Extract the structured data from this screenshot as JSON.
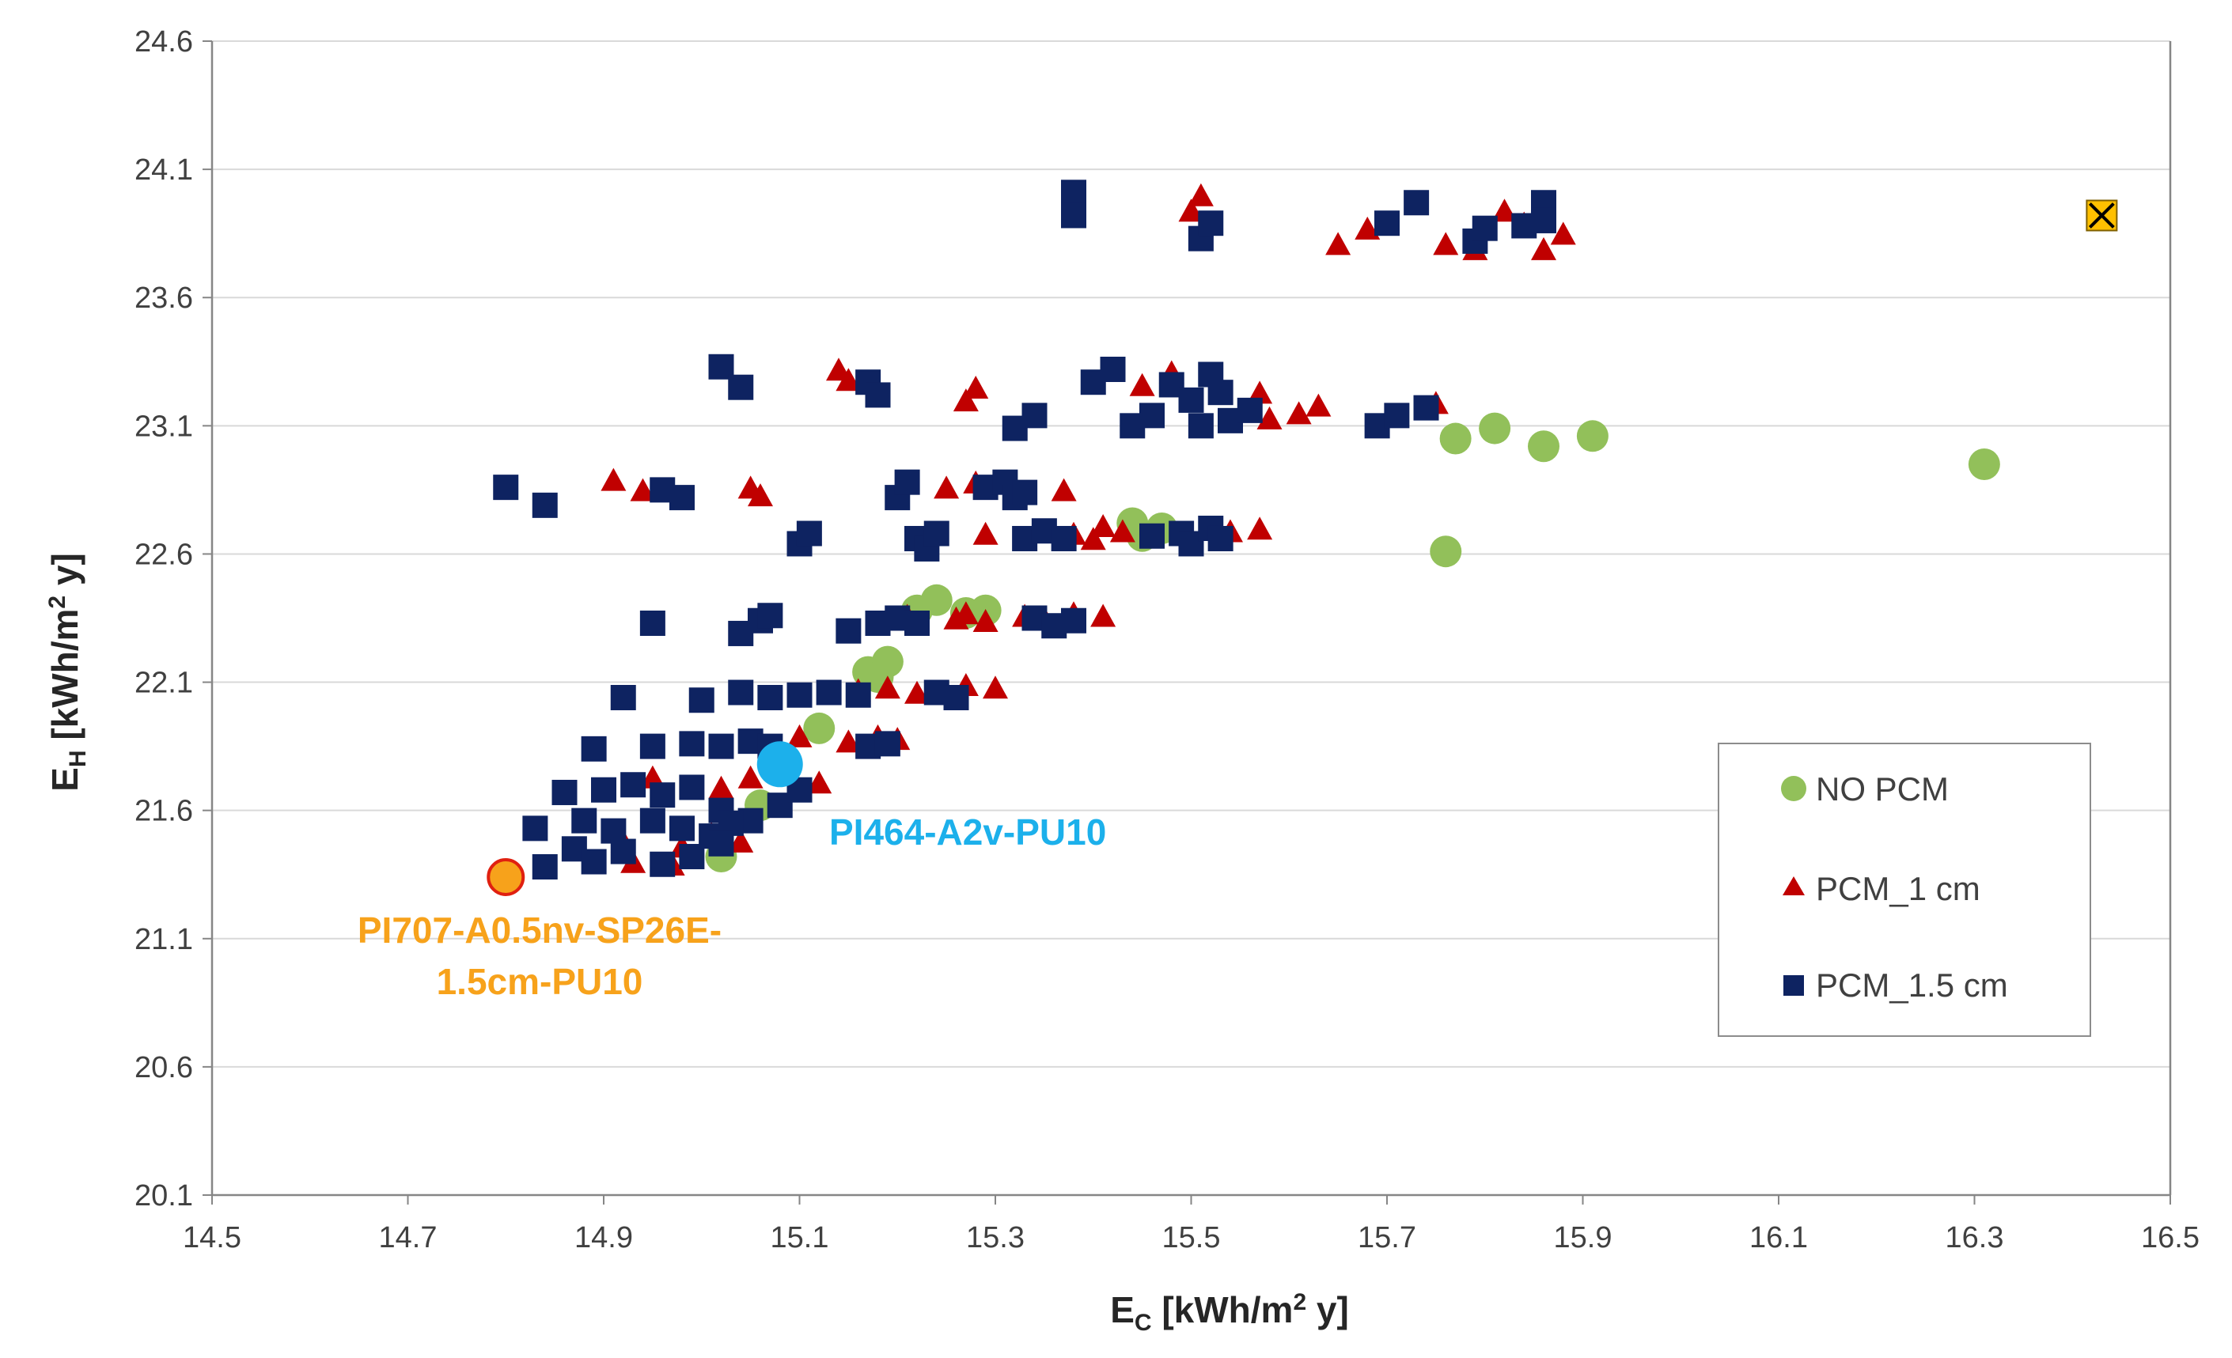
{
  "chart_data": {
    "type": "scatter",
    "title": "",
    "xlabel": {
      "main": "E",
      "sub": "C",
      "unit_pre": " [kWh/m",
      "sup": "2",
      "unit_post": " y]"
    },
    "ylabel": {
      "main": "E",
      "sub": "H",
      "unit_pre": " [kWh/m",
      "sup": "2",
      "unit_post": " y]"
    },
    "xlim": [
      14.5,
      16.5
    ],
    "ylim": [
      20.1,
      24.6
    ],
    "x_ticks": [
      "14.5",
      "14.7",
      "14.9",
      "15.1",
      "15.3",
      "15.5",
      "15.7",
      "15.9",
      "16.1",
      "16.3",
      "16.5"
    ],
    "y_ticks": [
      "20.1",
      "20.6",
      "21.1",
      "21.6",
      "22.1",
      "22.6",
      "23.1",
      "23.6",
      "24.1",
      "24.6"
    ],
    "grid": "horizontal",
    "legend_position": "right",
    "colors": {
      "no_pcm": "#92C05A",
      "pcm_1": "#C00000",
      "pcm_15": "#0E2361",
      "optimum": "#F7A21B",
      "optimum_edge": "#E02010",
      "reference": "#1CB0EB",
      "base_case": "#FFC000",
      "grid": "#D9D9D9",
      "axis": "#868686"
    },
    "series": [
      {
        "name": "NO PCM",
        "marker": "circle",
        "points": [
          [
            15.02,
            21.42
          ],
          [
            15.06,
            21.62
          ],
          [
            15.12,
            21.92
          ],
          [
            15.17,
            22.14
          ],
          [
            15.19,
            22.18
          ],
          [
            15.18,
            22.12
          ],
          [
            15.22,
            22.38
          ],
          [
            15.24,
            22.42
          ],
          [
            15.27,
            22.37
          ],
          [
            15.29,
            22.38
          ],
          [
            15.44,
            22.72
          ],
          [
            15.45,
            22.67
          ],
          [
            15.47,
            22.7
          ],
          [
            15.76,
            22.61
          ],
          [
            15.77,
            23.05
          ],
          [
            15.81,
            23.09
          ],
          [
            15.86,
            23.02
          ],
          [
            15.91,
            23.06
          ],
          [
            16.31,
            22.95
          ]
        ]
      },
      {
        "name": "PCM_1 cm",
        "marker": "triangle",
        "points": [
          [
            14.91,
            22.88
          ],
          [
            14.94,
            22.84
          ],
          [
            15.05,
            22.85
          ],
          [
            15.06,
            22.82
          ],
          [
            15.14,
            23.31
          ],
          [
            15.15,
            23.27
          ],
          [
            15.27,
            23.19
          ],
          [
            15.28,
            23.24
          ],
          [
            15.48,
            23.3
          ],
          [
            15.5,
            23.93
          ],
          [
            15.51,
            23.99
          ],
          [
            15.45,
            23.25
          ],
          [
            15.57,
            23.22
          ],
          [
            15.58,
            23.12
          ],
          [
            15.61,
            23.14
          ],
          [
            15.63,
            23.17
          ],
          [
            15.65,
            23.8
          ],
          [
            15.68,
            23.86
          ],
          [
            15.75,
            23.18
          ],
          [
            15.76,
            23.8
          ],
          [
            15.79,
            23.78
          ],
          [
            15.82,
            23.93
          ],
          [
            15.84,
            23.88
          ],
          [
            15.86,
            23.78
          ],
          [
            15.88,
            23.84
          ],
          [
            15.23,
            22.67
          ],
          [
            15.25,
            22.85
          ],
          [
            15.28,
            22.87
          ],
          [
            15.29,
            22.67
          ],
          [
            15.37,
            22.84
          ],
          [
            15.38,
            22.67
          ],
          [
            15.41,
            22.7
          ],
          [
            15.4,
            22.65
          ],
          [
            15.43,
            22.68
          ],
          [
            15.46,
            22.66
          ],
          [
            15.54,
            22.68
          ],
          [
            15.57,
            22.69
          ],
          [
            15.21,
            22.35
          ],
          [
            15.26,
            22.34
          ],
          [
            15.27,
            22.36
          ],
          [
            15.29,
            22.33
          ],
          [
            15.33,
            22.35
          ],
          [
            15.35,
            22.34
          ],
          [
            15.38,
            22.36
          ],
          [
            15.41,
            22.35
          ],
          [
            15.16,
            22.06
          ],
          [
            15.19,
            22.07
          ],
          [
            15.22,
            22.05
          ],
          [
            15.27,
            22.08
          ],
          [
            15.3,
            22.07
          ],
          [
            14.95,
            21.72
          ],
          [
            15.02,
            21.68
          ],
          [
            15.05,
            21.72
          ],
          [
            15.09,
            21.73
          ],
          [
            15.12,
            21.7
          ],
          [
            14.98,
            21.45
          ],
          [
            15.01,
            21.5
          ],
          [
            15.04,
            21.47
          ],
          [
            14.92,
            21.47
          ],
          [
            14.97,
            21.38
          ],
          [
            14.93,
            21.39
          ],
          [
            15.1,
            21.88
          ],
          [
            15.15,
            21.86
          ],
          [
            15.18,
            21.88
          ],
          [
            15.2,
            21.87
          ]
        ]
      },
      {
        "name": "PCM_1.5 cm",
        "marker": "square",
        "points": [
          [
            15.38,
            24.01
          ],
          [
            15.38,
            23.92
          ],
          [
            15.51,
            23.83
          ],
          [
            15.52,
            23.89
          ],
          [
            15.7,
            23.89
          ],
          [
            15.73,
            23.97
          ],
          [
            15.79,
            23.82
          ],
          [
            15.8,
            23.87
          ],
          [
            15.84,
            23.88
          ],
          [
            15.86,
            23.97
          ],
          [
            15.86,
            23.9
          ],
          [
            15.02,
            23.33
          ],
          [
            15.04,
            23.25
          ],
          [
            15.17,
            23.27
          ],
          [
            15.18,
            23.22
          ],
          [
            15.32,
            23.09
          ],
          [
            15.34,
            23.14
          ],
          [
            15.4,
            23.27
          ],
          [
            15.42,
            23.32
          ],
          [
            15.44,
            23.1
          ],
          [
            15.46,
            23.14
          ],
          [
            15.48,
            23.26
          ],
          [
            15.5,
            23.2
          ],
          [
            15.51,
            23.1
          ],
          [
            15.52,
            23.3
          ],
          [
            15.53,
            23.23
          ],
          [
            15.54,
            23.12
          ],
          [
            15.56,
            23.16
          ],
          [
            15.69,
            23.1
          ],
          [
            15.71,
            23.14
          ],
          [
            15.74,
            23.17
          ],
          [
            14.8,
            22.86
          ],
          [
            14.84,
            22.79
          ],
          [
            14.96,
            22.85
          ],
          [
            14.98,
            22.82
          ],
          [
            15.1,
            22.64
          ],
          [
            15.11,
            22.68
          ],
          [
            15.2,
            22.82
          ],
          [
            15.21,
            22.88
          ],
          [
            15.22,
            22.66
          ],
          [
            15.23,
            22.62
          ],
          [
            15.24,
            22.68
          ],
          [
            15.29,
            22.86
          ],
          [
            15.31,
            22.88
          ],
          [
            15.32,
            22.82
          ],
          [
            15.33,
            22.84
          ],
          [
            15.33,
            22.66
          ],
          [
            15.35,
            22.69
          ],
          [
            15.37,
            22.66
          ],
          [
            15.46,
            22.67
          ],
          [
            15.49,
            22.68
          ],
          [
            15.5,
            22.64
          ],
          [
            15.52,
            22.7
          ],
          [
            15.53,
            22.66
          ],
          [
            14.95,
            22.33
          ],
          [
            15.04,
            22.29
          ],
          [
            15.06,
            22.34
          ],
          [
            15.07,
            22.36
          ],
          [
            15.15,
            22.3
          ],
          [
            15.18,
            22.33
          ],
          [
            15.2,
            22.35
          ],
          [
            15.22,
            22.33
          ],
          [
            15.34,
            22.35
          ],
          [
            15.36,
            22.32
          ],
          [
            15.38,
            22.34
          ],
          [
            14.92,
            22.04
          ],
          [
            15.0,
            22.03
          ],
          [
            15.04,
            22.06
          ],
          [
            15.07,
            22.04
          ],
          [
            15.1,
            22.05
          ],
          [
            15.13,
            22.06
          ],
          [
            15.16,
            22.05
          ],
          [
            15.24,
            22.06
          ],
          [
            15.26,
            22.04
          ],
          [
            14.89,
            21.84
          ],
          [
            14.95,
            21.85
          ],
          [
            14.99,
            21.86
          ],
          [
            15.02,
            21.85
          ],
          [
            15.05,
            21.87
          ],
          [
            15.07,
            21.85
          ],
          [
            15.17,
            21.85
          ],
          [
            15.19,
            21.86
          ],
          [
            14.86,
            21.67
          ],
          [
            14.9,
            21.68
          ],
          [
            14.93,
            21.7
          ],
          [
            14.96,
            21.66
          ],
          [
            14.99,
            21.69
          ],
          [
            15.02,
            21.6
          ],
          [
            15.05,
            21.56
          ],
          [
            15.08,
            21.62
          ],
          [
            15.1,
            21.68
          ],
          [
            14.83,
            21.53
          ],
          [
            14.88,
            21.56
          ],
          [
            14.91,
            21.52
          ],
          [
            14.95,
            21.56
          ],
          [
            14.98,
            21.53
          ],
          [
            15.01,
            21.5
          ],
          [
            15.03,
            21.55
          ],
          [
            14.84,
            21.38
          ],
          [
            14.87,
            21.45
          ],
          [
            14.89,
            21.4
          ],
          [
            14.92,
            21.44
          ],
          [
            14.96,
            21.39
          ],
          [
            14.99,
            21.42
          ],
          [
            15.02,
            21.47
          ]
        ]
      }
    ],
    "legend": [
      "NO PCM",
      "PCM_1 cm",
      "PCM_1.5 cm"
    ],
    "highlights": [
      {
        "name": "optimum",
        "x": 14.8,
        "y": 21.34,
        "label_line1": "PI707-A0.5nv-SP26E-",
        "label_line2": "1.5cm-PU10"
      },
      {
        "name": "reference",
        "x": 15.08,
        "y": 21.78,
        "label": "PI464-A2v-PU10"
      },
      {
        "name": "base-case",
        "x": 16.43,
        "y": 23.92
      }
    ]
  }
}
